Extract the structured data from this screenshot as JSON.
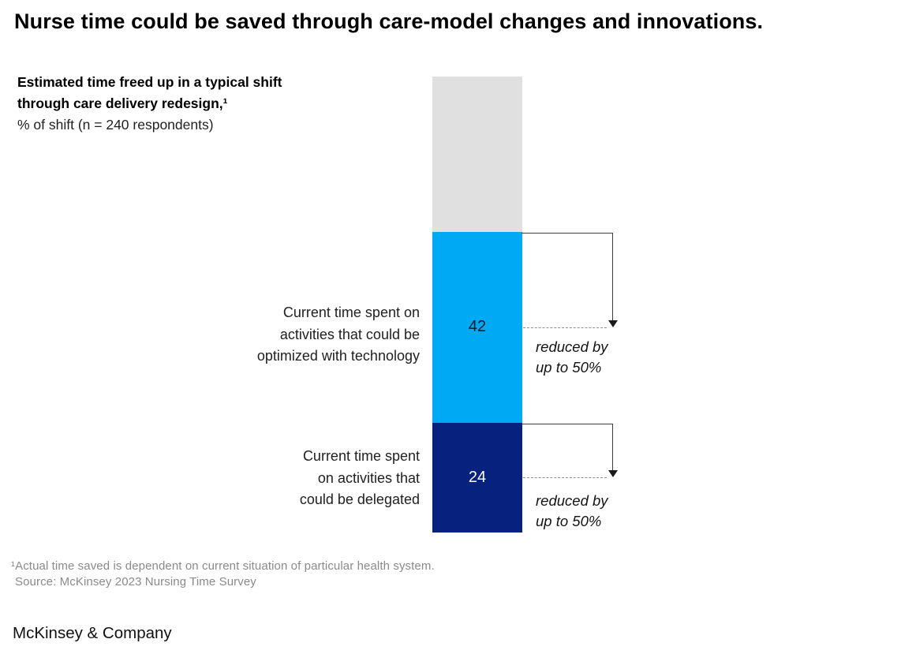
{
  "header": {
    "title": "Nurse time could be saved through care-model changes and innovations."
  },
  "chart": {
    "subtitle_bold": "Estimated time freed up in a typical shift\nthrough care delivery redesign,¹",
    "subtitle_unit": "% of shift (n = 240 respondents)"
  },
  "chart_data": {
    "type": "bar",
    "title": "Estimated time freed up in a typical shift through care delivery redesign",
    "ylabel": "% of shift (n = 240 respondents)",
    "stack_total": 100,
    "orientation": "vertical-stacked-single-bar",
    "grid": false,
    "legend": false,
    "segments": [
      {
        "name": "remaining-shift-time",
        "label": "",
        "value": 34,
        "value_shown": false,
        "color": "#E0E0E0"
      },
      {
        "name": "optimizable-with-technology",
        "label": "Current time spent on\nactivities that could be\noptimized with technology",
        "value": 42,
        "value_shown": true,
        "color": "#00A9F4",
        "value_label_color": "#051C2C",
        "annotation": "reduced by\nup to 50%"
      },
      {
        "name": "delegatable",
        "label": "Current time spent\non activities that\ncould be delegated",
        "value": 24,
        "value_shown": true,
        "color": "#06217E",
        "value_label_color": "#FFFFFF",
        "annotation": "reduced by\nup to 50%"
      }
    ]
  },
  "footnotes": {
    "note": "¹Actual time saved is dependent on current situation of particular health system.",
    "source": "Source: McKinsey 2023 Nursing Time Survey"
  },
  "footer": {
    "logo": "McKinsey & Company"
  },
  "colors": {
    "light_blue": "#00A9F4",
    "dark_navy": "#06217E",
    "remainder_gray": "#E0E0E0",
    "text_black": "#000000",
    "footnote_gray": "#8A8A8A"
  }
}
